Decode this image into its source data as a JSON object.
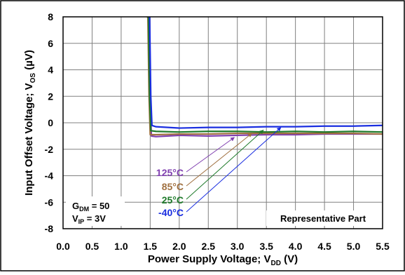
{
  "chart_data": {
    "type": "line",
    "xlabel": {
      "main": "Power Supply Voltage; V",
      "sub": "DD",
      "tail": " (V)"
    },
    "ylabel": {
      "main": "Input Offset Voltage; V",
      "sub": "OS",
      "tail": " (µV)"
    },
    "xlim": [
      0.0,
      5.5
    ],
    "ylim": [
      -8,
      8
    ],
    "x_ticks": [
      0.0,
      0.5,
      1.0,
      1.5,
      2.0,
      2.5,
      3.0,
      3.5,
      4.0,
      4.5,
      5.0,
      5.5
    ],
    "x_tick_labels": [
      "0.0",
      "0.5",
      "1.0",
      "1.5",
      "2.0",
      "2.5",
      "3.0",
      "3.5",
      "4.0",
      "4.5",
      "5.0",
      "5.5"
    ],
    "y_ticks": [
      -8,
      -6,
      -4,
      -2,
      0,
      2,
      4,
      6,
      8
    ],
    "y_tick_labels": [
      "-8",
      "-6",
      "-4",
      "-2",
      "0",
      "2",
      "4",
      "6",
      "8"
    ],
    "grid": true,
    "series": [
      {
        "name": "125°C",
        "color": "#8040b0",
        "x": [
          1.46,
          1.48,
          1.5,
          1.52,
          1.6,
          2.0,
          2.5,
          3.0,
          3.5,
          4.0,
          4.5,
          5.0,
          5.5
        ],
        "y": [
          8,
          8,
          2.0,
          -1.0,
          -1.05,
          -0.95,
          -1.0,
          -0.95,
          -0.9,
          -0.9,
          -0.85,
          -0.85,
          -0.85
        ]
      },
      {
        "name": "85°C",
        "color": "#a07040",
        "x": [
          1.44,
          1.46,
          1.48,
          1.5,
          1.6,
          2.0,
          2.5,
          3.0,
          3.5,
          4.0,
          4.5,
          5.0,
          5.5
        ],
        "y": [
          8,
          8,
          2.0,
          -0.9,
          -0.9,
          -0.85,
          -0.85,
          -0.8,
          -0.8,
          -0.8,
          -0.8,
          -0.8,
          -0.85
        ]
      },
      {
        "name": "25°C",
        "color": "#1e7a2a",
        "x": [
          1.45,
          1.47,
          1.49,
          1.51,
          1.6,
          2.0,
          2.5,
          3.0,
          3.5,
          4.0,
          4.5,
          5.0,
          5.5
        ],
        "y": [
          8,
          8,
          2.0,
          -0.6,
          -0.65,
          -0.7,
          -0.65,
          -0.65,
          -0.7,
          -0.65,
          -0.7,
          -0.65,
          -0.7
        ]
      },
      {
        "name": "-40°C",
        "color": "#1a2ee0",
        "x": [
          1.47,
          1.49,
          1.51,
          1.53,
          1.6,
          2.0,
          2.5,
          3.0,
          3.5,
          4.0,
          4.5,
          5.0,
          5.5
        ],
        "y": [
          8,
          8,
          2.0,
          -0.2,
          -0.3,
          -0.4,
          -0.35,
          -0.35,
          -0.3,
          -0.3,
          -0.25,
          -0.25,
          -0.2
        ]
      }
    ],
    "legend": {
      "placement": "lower-center",
      "arrow_targets": [
        {
          "series": "125°C",
          "x": 2.95,
          "y": -1.1
        },
        {
          "series": "85°C",
          "x": 3.25,
          "y": -0.8
        },
        {
          "series": "25°C",
          "x": 3.45,
          "y": -0.55
        },
        {
          "series": "-40°C",
          "x": 3.75,
          "y": -0.35
        }
      ]
    },
    "annotations": {
      "gdm": {
        "main": "G",
        "sub": "DM",
        "tail": " = 50"
      },
      "vip": {
        "main": "V",
        "sub": "IP",
        "tail": " = 3V"
      },
      "part": "Representative Part"
    }
  }
}
